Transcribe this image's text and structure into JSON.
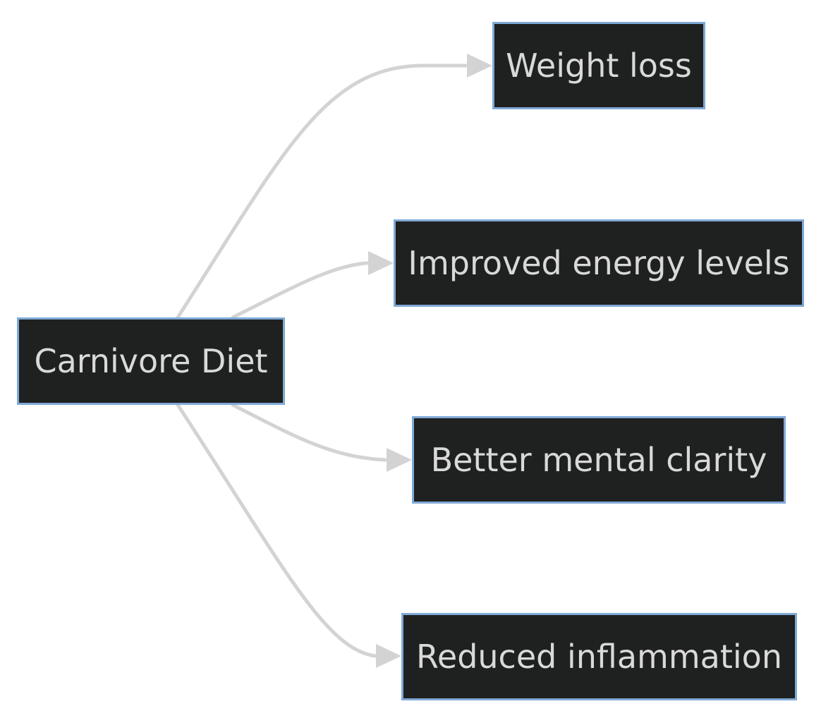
{
  "diagram": {
    "root": {
      "label": "Carnivore Diet"
    },
    "children": [
      {
        "label": "Weight loss"
      },
      {
        "label": "Improved energy levels"
      },
      {
        "label": "Better mental clarity"
      },
      {
        "label": "Reduced inflammation"
      }
    ]
  },
  "colors": {
    "background": "#ffffff",
    "node_fill": "#1f2020",
    "node_border": "#7fa9d6",
    "node_text": "#d9d9d9",
    "edge": "#d3d3d3"
  }
}
